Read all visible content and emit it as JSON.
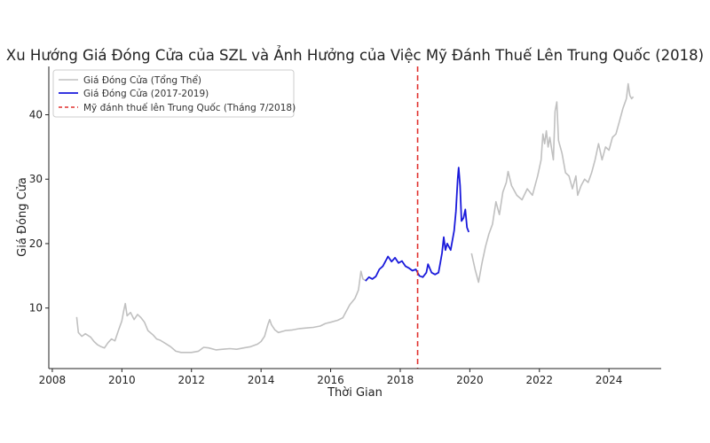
{
  "chart_data": {
    "type": "line",
    "title": "Xu Hướng Giá Đóng Cửa của SZL và Ảnh Hưởng của Việc Mỹ Đánh Thuế Lên Trung Quốc (2018)",
    "xlabel": "Thời Gian",
    "ylabel": "Giá Đóng Cửa",
    "xlim": [
      2007.9,
      2025.5
    ],
    "ylim": [
      0.6,
      47.5
    ],
    "xticks": [
      2008,
      2010,
      2012,
      2014,
      2016,
      2018,
      2020,
      2022,
      2024
    ],
    "yticks": [
      10,
      20,
      30,
      40
    ],
    "grid": false,
    "legend_position": "top-left",
    "series": [
      {
        "name": "Giá Đóng Cửa (Tổng Thể)",
        "color": "#c0c0c0",
        "points": [
          [
            2008.7,
            8.6
          ],
          [
            2008.75,
            6.2
          ],
          [
            2008.85,
            5.6
          ],
          [
            2008.95,
            6.0
          ],
          [
            2009.1,
            5.5
          ],
          [
            2009.2,
            4.8
          ],
          [
            2009.3,
            4.3
          ],
          [
            2009.4,
            4.0
          ],
          [
            2009.5,
            3.8
          ],
          [
            2009.6,
            4.6
          ],
          [
            2009.7,
            5.2
          ],
          [
            2009.8,
            4.9
          ],
          [
            2009.9,
            6.5
          ],
          [
            2010.0,
            8.0
          ],
          [
            2010.05,
            9.5
          ],
          [
            2010.1,
            10.7
          ],
          [
            2010.15,
            8.8
          ],
          [
            2010.25,
            9.3
          ],
          [
            2010.35,
            8.2
          ],
          [
            2010.45,
            9.0
          ],
          [
            2010.55,
            8.5
          ],
          [
            2010.65,
            7.8
          ],
          [
            2010.75,
            6.5
          ],
          [
            2010.9,
            5.8
          ],
          [
            2011.0,
            5.2
          ],
          [
            2011.1,
            5.0
          ],
          [
            2011.25,
            4.5
          ],
          [
            2011.4,
            4.0
          ],
          [
            2011.55,
            3.3
          ],
          [
            2011.7,
            3.1
          ],
          [
            2012.0,
            3.1
          ],
          [
            2012.2,
            3.3
          ],
          [
            2012.35,
            3.9
          ],
          [
            2012.5,
            3.8
          ],
          [
            2012.7,
            3.5
          ],
          [
            2012.9,
            3.6
          ],
          [
            2013.1,
            3.7
          ],
          [
            2013.3,
            3.6
          ],
          [
            2013.5,
            3.8
          ],
          [
            2013.7,
            4.0
          ],
          [
            2013.9,
            4.4
          ],
          [
            2014.0,
            4.8
          ],
          [
            2014.1,
            5.6
          ],
          [
            2014.2,
            7.5
          ],
          [
            2014.25,
            8.2
          ],
          [
            2014.3,
            7.4
          ],
          [
            2014.4,
            6.6
          ],
          [
            2014.5,
            6.2
          ],
          [
            2014.7,
            6.5
          ],
          [
            2014.9,
            6.6
          ],
          [
            2015.1,
            6.8
          ],
          [
            2015.3,
            6.9
          ],
          [
            2015.5,
            7.0
          ],
          [
            2015.7,
            7.2
          ],
          [
            2015.85,
            7.6
          ],
          [
            2016.0,
            7.8
          ],
          [
            2016.2,
            8.1
          ],
          [
            2016.35,
            8.5
          ],
          [
            2016.45,
            9.5
          ],
          [
            2016.55,
            10.5
          ],
          [
            2016.7,
            11.5
          ],
          [
            2016.8,
            12.8
          ],
          [
            2016.87,
            15.7
          ],
          [
            2016.93,
            14.5
          ],
          [
            2017.0,
            14.3
          ],
          [
            2020.05,
            18.5
          ],
          [
            2020.15,
            16.0
          ],
          [
            2020.25,
            14.0
          ],
          [
            2020.35,
            17.0
          ],
          [
            2020.45,
            19.5
          ],
          [
            2020.55,
            21.5
          ],
          [
            2020.65,
            23.0
          ],
          [
            2020.75,
            26.5
          ],
          [
            2020.85,
            24.5
          ],
          [
            2020.95,
            28.0
          ],
          [
            2021.05,
            29.5
          ],
          [
            2021.1,
            31.2
          ],
          [
            2021.2,
            29.0
          ],
          [
            2021.35,
            27.5
          ],
          [
            2021.5,
            26.8
          ],
          [
            2021.65,
            28.5
          ],
          [
            2021.8,
            27.5
          ],
          [
            2021.95,
            30.5
          ],
          [
            2022.05,
            33.0
          ],
          [
            2022.1,
            37.0
          ],
          [
            2022.15,
            35.5
          ],
          [
            2022.2,
            37.5
          ],
          [
            2022.25,
            35.0
          ],
          [
            2022.3,
            36.5
          ],
          [
            2022.4,
            33.0
          ],
          [
            2022.45,
            40.5
          ],
          [
            2022.5,
            42.0
          ],
          [
            2022.55,
            36.0
          ],
          [
            2022.65,
            34.0
          ],
          [
            2022.75,
            31.0
          ],
          [
            2022.85,
            30.5
          ],
          [
            2022.95,
            28.5
          ],
          [
            2023.05,
            30.5
          ],
          [
            2023.1,
            27.5
          ],
          [
            2023.2,
            29.0
          ],
          [
            2023.3,
            30.0
          ],
          [
            2023.4,
            29.5
          ],
          [
            2023.5,
            31.0
          ],
          [
            2023.6,
            33.0
          ],
          [
            2023.7,
            35.5
          ],
          [
            2023.8,
            33.0
          ],
          [
            2023.9,
            35.0
          ],
          [
            2024.0,
            34.5
          ],
          [
            2024.1,
            36.5
          ],
          [
            2024.2,
            37.0
          ],
          [
            2024.3,
            39.0
          ],
          [
            2024.4,
            41.0
          ],
          [
            2024.5,
            42.5
          ],
          [
            2024.55,
            44.8
          ],
          [
            2024.6,
            43.0
          ],
          [
            2024.65,
            42.5
          ],
          [
            2024.7,
            42.8
          ]
        ]
      },
      {
        "name": "Giá Đóng Cửa (2017-2019)",
        "color": "#1a1adb",
        "points": [
          [
            2017.0,
            14.2
          ],
          [
            2017.1,
            14.8
          ],
          [
            2017.2,
            14.5
          ],
          [
            2017.3,
            14.9
          ],
          [
            2017.4,
            16.0
          ],
          [
            2017.5,
            16.5
          ],
          [
            2017.6,
            17.5
          ],
          [
            2017.65,
            18.0
          ],
          [
            2017.75,
            17.2
          ],
          [
            2017.85,
            17.8
          ],
          [
            2017.95,
            17.0
          ],
          [
            2018.05,
            17.3
          ],
          [
            2018.15,
            16.5
          ],
          [
            2018.25,
            16.2
          ],
          [
            2018.35,
            15.8
          ],
          [
            2018.45,
            16.0
          ],
          [
            2018.55,
            15.0
          ],
          [
            2018.65,
            14.8
          ],
          [
            2018.75,
            15.5
          ],
          [
            2018.8,
            16.8
          ],
          [
            2018.9,
            15.5
          ],
          [
            2019.0,
            15.2
          ],
          [
            2019.1,
            15.5
          ],
          [
            2019.15,
            17.0
          ],
          [
            2019.2,
            18.5
          ],
          [
            2019.25,
            21.0
          ],
          [
            2019.3,
            19.0
          ],
          [
            2019.35,
            20.0
          ],
          [
            2019.45,
            19.0
          ],
          [
            2019.55,
            22.0
          ],
          [
            2019.6,
            25.0
          ],
          [
            2019.65,
            30.0
          ],
          [
            2019.68,
            31.8
          ],
          [
            2019.72,
            29.0
          ],
          [
            2019.76,
            23.5
          ],
          [
            2019.82,
            24.0
          ],
          [
            2019.87,
            25.3
          ],
          [
            2019.92,
            22.5
          ],
          [
            2019.97,
            21.8
          ]
        ]
      }
    ],
    "vline": {
      "name": "Mỹ đánh thuế lên Trung Quốc (Tháng 7/2018)",
      "x": 2018.5,
      "color": "#e0312e",
      "style": "dashed"
    }
  }
}
